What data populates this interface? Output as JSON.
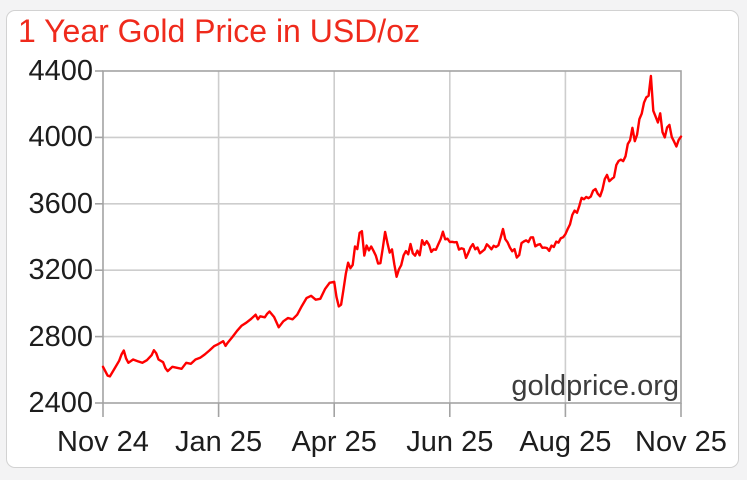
{
  "title": "1 Year Gold Price in USD/oz",
  "watermark": "goldprice.org",
  "colors": {
    "title_red": "#ef2a1c",
    "line_red": "#ff0000",
    "grid": "#cdcdcd",
    "plot_border": "#a3a3a3",
    "tick": "#a3a3a3",
    "axis_text": "#1d1d1d",
    "watermark_gray": "#3c3c3c",
    "card_border": "#d2d2d2",
    "card_bg": "#ffffff",
    "page_bg": "#f3f3f4"
  },
  "chart_data": {
    "type": "line",
    "title": "1 Year Gold Price in USD/oz",
    "xlabel": "",
    "ylabel": "",
    "grid": true,
    "legend": false,
    "ylim": [
      2400,
      4400
    ],
    "y_ticks": [
      2400,
      2800,
      3200,
      3600,
      4000,
      4400
    ],
    "y_tick_labels": [
      "2400",
      "2800",
      "3200",
      "3600",
      "4000",
      "4400"
    ],
    "x_range_trading_days": [
      0,
      250
    ],
    "x_ticks_trading_days": [
      0,
      50,
      100,
      150,
      200,
      250
    ],
    "x_tick_labels": [
      "Nov 24",
      "Jan 25",
      "Apr 25",
      "Jun 25",
      "Aug 25",
      "Nov 25"
    ],
    "series": [
      {
        "name": "Gold price in USD per ounce",
        "color": "#ff0000",
        "points_t_v": [
          [
            0,
            2618
          ],
          [
            2,
            2565
          ],
          [
            3,
            2560
          ],
          [
            5,
            2608
          ],
          [
            7,
            2655
          ],
          [
            8,
            2692
          ],
          [
            9,
            2716
          ],
          [
            10,
            2668
          ],
          [
            11,
            2642
          ],
          [
            13,
            2662
          ],
          [
            15,
            2652
          ],
          [
            17,
            2642
          ],
          [
            19,
            2658
          ],
          [
            21,
            2688
          ],
          [
            22,
            2718
          ],
          [
            23,
            2700
          ],
          [
            24,
            2662
          ],
          [
            26,
            2646
          ],
          [
            27,
            2610
          ],
          [
            28,
            2592
          ],
          [
            30,
            2618
          ],
          [
            32,
            2612
          ],
          [
            34,
            2606
          ],
          [
            36,
            2642
          ],
          [
            38,
            2636
          ],
          [
            40,
            2662
          ],
          [
            42,
            2672
          ],
          [
            44,
            2692
          ],
          [
            46,
            2716
          ],
          [
            48,
            2742
          ],
          [
            50,
            2756
          ],
          [
            52,
            2772
          ],
          [
            53,
            2744
          ],
          [
            54,
            2764
          ],
          [
            56,
            2798
          ],
          [
            58,
            2835
          ],
          [
            60,
            2866
          ],
          [
            62,
            2884
          ],
          [
            64,
            2906
          ],
          [
            66,
            2932
          ],
          [
            67,
            2904
          ],
          [
            68,
            2922
          ],
          [
            70,
            2916
          ],
          [
            71,
            2938
          ],
          [
            72,
            2951
          ],
          [
            74,
            2918
          ],
          [
            76,
            2856
          ],
          [
            78,
            2892
          ],
          [
            80,
            2912
          ],
          [
            82,
            2904
          ],
          [
            84,
            2932
          ],
          [
            86,
            2984
          ],
          [
            88,
            3032
          ],
          [
            90,
            3046
          ],
          [
            92,
            3022
          ],
          [
            94,
            3028
          ],
          [
            96,
            3086
          ],
          [
            98,
            3124
          ],
          [
            100,
            3130
          ],
          [
            101,
            3038
          ],
          [
            102,
            2982
          ],
          [
            103,
            2992
          ],
          [
            104,
            3080
          ],
          [
            105,
            3178
          ],
          [
            106,
            3245
          ],
          [
            107,
            3212
          ],
          [
            108,
            3232
          ],
          [
            109,
            3343
          ],
          [
            110,
            3327
          ],
          [
            111,
            3425
          ],
          [
            112,
            3435
          ],
          [
            113,
            3288
          ],
          [
            114,
            3349
          ],
          [
            115,
            3319
          ],
          [
            116,
            3343
          ],
          [
            117,
            3317
          ],
          [
            118,
            3288
          ],
          [
            119,
            3240
          ],
          [
            120,
            3242
          ],
          [
            121,
            3334
          ],
          [
            122,
            3431
          ],
          [
            123,
            3365
          ],
          [
            124,
            3306
          ],
          [
            125,
            3325
          ],
          [
            126,
            3236
          ],
          [
            127,
            3160
          ],
          [
            128,
            3205
          ],
          [
            129,
            3230
          ],
          [
            130,
            3290
          ],
          [
            131,
            3315
          ],
          [
            132,
            3296
          ],
          [
            133,
            3358
          ],
          [
            134,
            3302
          ],
          [
            135,
            3288
          ],
          [
            136,
            3318
          ],
          [
            137,
            3290
          ],
          [
            138,
            3381
          ],
          [
            139,
            3353
          ],
          [
            140,
            3375
          ],
          [
            141,
            3353
          ],
          [
            142,
            3310
          ],
          [
            143,
            3326
          ],
          [
            144,
            3323
          ],
          [
            145,
            3355
          ],
          [
            146,
            3386
          ],
          [
            147,
            3432
          ],
          [
            148,
            3386
          ],
          [
            149,
            3390
          ],
          [
            150,
            3370
          ],
          [
            151,
            3371
          ],
          [
            152,
            3368
          ],
          [
            153,
            3369
          ],
          [
            154,
            3324
          ],
          [
            155,
            3332
          ],
          [
            156,
            3328
          ],
          [
            157,
            3274
          ],
          [
            158,
            3304
          ],
          [
            159,
            3338
          ],
          [
            160,
            3357
          ],
          [
            161,
            3326
          ],
          [
            162,
            3337
          ],
          [
            163,
            3302
          ],
          [
            164,
            3313
          ],
          [
            165,
            3324
          ],
          [
            166,
            3356
          ],
          [
            167,
            3343
          ],
          [
            168,
            3326
          ],
          [
            169,
            3347
          ],
          [
            170,
            3340
          ],
          [
            171,
            3350
          ],
          [
            172,
            3397
          ],
          [
            173,
            3448
          ],
          [
            174,
            3387
          ],
          [
            175,
            3368
          ],
          [
            176,
            3337
          ],
          [
            177,
            3314
          ],
          [
            178,
            3327
          ],
          [
            179,
            3276
          ],
          [
            180,
            3291
          ],
          [
            181,
            3363
          ],
          [
            182,
            3373
          ],
          [
            183,
            3380
          ],
          [
            184,
            3369
          ],
          [
            185,
            3397
          ],
          [
            186,
            3398
          ],
          [
            187,
            3344
          ],
          [
            188,
            3353
          ],
          [
            189,
            3357
          ],
          [
            190,
            3335
          ],
          [
            191,
            3336
          ],
          [
            192,
            3334
          ],
          [
            193,
            3316
          ],
          [
            194,
            3348
          ],
          [
            195,
            3340
          ],
          [
            196,
            3372
          ],
          [
            197,
            3366
          ],
          [
            198,
            3393
          ],
          [
            199,
            3398
          ],
          [
            200,
            3417
          ],
          [
            201,
            3448
          ],
          [
            202,
            3476
          ],
          [
            203,
            3533
          ],
          [
            204,
            3559
          ],
          [
            205,
            3546
          ],
          [
            206,
            3587
          ],
          [
            207,
            3636
          ],
          [
            208,
            3627
          ],
          [
            209,
            3641
          ],
          [
            210,
            3634
          ],
          [
            211,
            3644
          ],
          [
            212,
            3679
          ],
          [
            213,
            3689
          ],
          [
            214,
            3660
          ],
          [
            215,
            3645
          ],
          [
            216,
            3685
          ],
          [
            217,
            3748
          ],
          [
            218,
            3774
          ],
          [
            219,
            3736
          ],
          [
            220,
            3749
          ],
          [
            221,
            3760
          ],
          [
            222,
            3833
          ],
          [
            223,
            3858
          ],
          [
            224,
            3866
          ],
          [
            225,
            3857
          ],
          [
            226,
            3886
          ],
          [
            227,
            3960
          ],
          [
            228,
            3983
          ],
          [
            229,
            4058
          ],
          [
            230,
            3977
          ],
          [
            231,
            4017
          ],
          [
            232,
            4110
          ],
          [
            233,
            4143
          ],
          [
            234,
            4209
          ],
          [
            235,
            4241
          ],
          [
            236,
            4251
          ],
          [
            237,
            4370
          ],
          [
            238,
            4160
          ],
          [
            239,
            4125
          ],
          [
            240,
            4090
          ],
          [
            241,
            4145
          ],
          [
            242,
            4032
          ],
          [
            243,
            4000
          ],
          [
            244,
            4060
          ],
          [
            245,
            4075
          ],
          [
            246,
            4002
          ],
          [
            247,
            3975
          ],
          [
            248,
            3945
          ],
          [
            249,
            3985
          ],
          [
            250,
            4005
          ]
        ]
      }
    ]
  }
}
